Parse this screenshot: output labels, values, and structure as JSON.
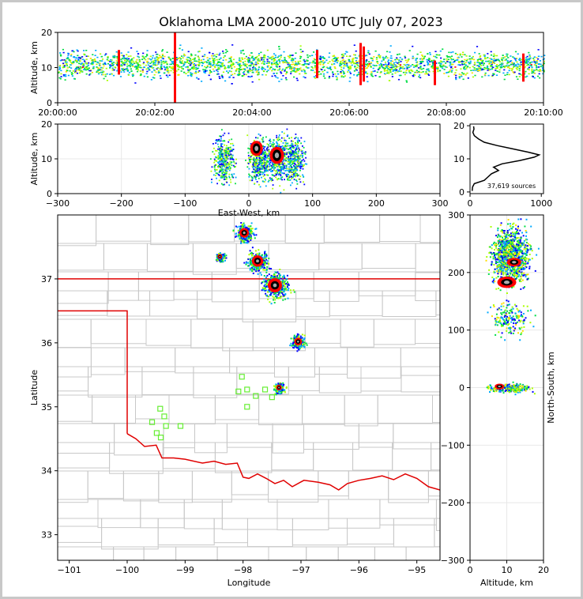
{
  "chart_data": {
    "type": "lightning-mapping-array-summary",
    "title": "Oklahoma LMA 2000-2010 UTC July 07, 2023",
    "time_height": {
      "ylabel": "Altitude, km",
      "ylim": [
        0,
        20
      ],
      "yticks": [
        "0",
        "10",
        "20"
      ],
      "xticks": [
        "20:00:00",
        "20:02:00",
        "20:04:00",
        "20:06:00",
        "20:08:00",
        "20:10:00"
      ],
      "tmin_minutes": [
        0,
        10
      ]
    },
    "ew_altitude": {
      "xlabel": "East-West, km",
      "ylabel": "Altitude, km",
      "xlim": [
        -300,
        300
      ],
      "ylim": [
        0,
        20
      ],
      "xticks": [
        "−300",
        "−200",
        "−100",
        "0",
        "100",
        "200",
        "300"
      ],
      "yticks": [
        "0",
        "10",
        "20"
      ]
    },
    "altitude_histogram": {
      "xlim": [
        0,
        1000
      ],
      "xticks": [
        "0",
        "1000"
      ],
      "yticks": [
        "0",
        "10",
        "20"
      ],
      "annotation": "37,619 sources",
      "profile": [
        {
          "alt": 0.3,
          "count": 30
        },
        {
          "alt": 1.5,
          "count": 35
        },
        {
          "alt": 2.5,
          "count": 60
        },
        {
          "alt": 3.5,
          "count": 200
        },
        {
          "alt": 4.5,
          "count": 250
        },
        {
          "alt": 5.5,
          "count": 300
        },
        {
          "alt": 6.5,
          "count": 400
        },
        {
          "alt": 7.5,
          "count": 330
        },
        {
          "alt": 8.5,
          "count": 450
        },
        {
          "alt": 9.5,
          "count": 700
        },
        {
          "alt": 10.5,
          "count": 900
        },
        {
          "alt": 11.2,
          "count": 970
        },
        {
          "alt": 12.0,
          "count": 820
        },
        {
          "alt": 13.0,
          "count": 600
        },
        {
          "alt": 14.0,
          "count": 380
        },
        {
          "alt": 15.0,
          "count": 200
        },
        {
          "alt": 16.0,
          "count": 120
        },
        {
          "alt": 17.0,
          "count": 60
        },
        {
          "alt": 18.0,
          "count": 40
        },
        {
          "alt": 19.0,
          "count": 55
        },
        {
          "alt": 19.8,
          "count": 50
        }
      ]
    },
    "plan_view": {
      "xlabel": "Longitude",
      "ylabel": "Latitude",
      "xlim": [
        -101.2,
        -94.6
      ],
      "ylim": [
        32.6,
        38.0
      ],
      "xticks": [
        "−101",
        "−100",
        "−99",
        "−98",
        "−97",
        "−96",
        "−95"
      ],
      "yticks": [
        "33",
        "34",
        "35",
        "36",
        "37"
      ],
      "stations": [
        {
          "lon": -98.02,
          "lat": 35.47
        },
        {
          "lon": -98.08,
          "lat": 35.24
        },
        {
          "lon": -97.93,
          "lat": 35.27
        },
        {
          "lon": -97.93,
          "lat": 35.0
        },
        {
          "lon": -97.78,
          "lat": 35.17
        },
        {
          "lon": -97.5,
          "lat": 35.15
        },
        {
          "lon": -97.62,
          "lat": 35.27
        },
        {
          "lon": -99.43,
          "lat": 34.97
        },
        {
          "lon": -99.36,
          "lat": 34.85
        },
        {
          "lon": -99.57,
          "lat": 34.76
        },
        {
          "lon": -99.33,
          "lat": 34.7
        },
        {
          "lon": -99.49,
          "lat": 34.59
        },
        {
          "lon": -99.42,
          "lat": 34.52
        },
        {
          "lon": -99.08,
          "lat": 34.7
        }
      ],
      "storms": [
        {
          "lon": -97.98,
          "lat": 37.72,
          "size": 1.0
        },
        {
          "lon": -97.75,
          "lat": 37.28,
          "size": 1.2
        },
        {
          "lon": -97.45,
          "lat": 36.9,
          "size": 1.5
        },
        {
          "lon": -97.05,
          "lat": 36.02,
          "size": 0.8
        },
        {
          "lon": -97.38,
          "lat": 35.3,
          "size": 0.6
        },
        {
          "lon": -98.4,
          "lat": 37.35,
          "size": 0.5
        }
      ]
    },
    "ns_altitude": {
      "xlabel": "Altitude, km",
      "ylabel": "North-South, km",
      "xlim": [
        0,
        20
      ],
      "ylim": [
        -300,
        300
      ],
      "xticks": [
        "0",
        "10",
        "20"
      ],
      "yticks": [
        "−300",
        "−200",
        "−100",
        "0",
        "100",
        "200",
        "300"
      ]
    },
    "colors": {
      "state_border": "#e00000",
      "county_lines": "#c8c8c8",
      "station": "#66ee33",
      "density": [
        "#0000ff",
        "#00aaff",
        "#00dd44",
        "#aaff00",
        "#ffdd00",
        "#ff0000",
        "#000000",
        "#aaaaaa"
      ]
    }
  }
}
